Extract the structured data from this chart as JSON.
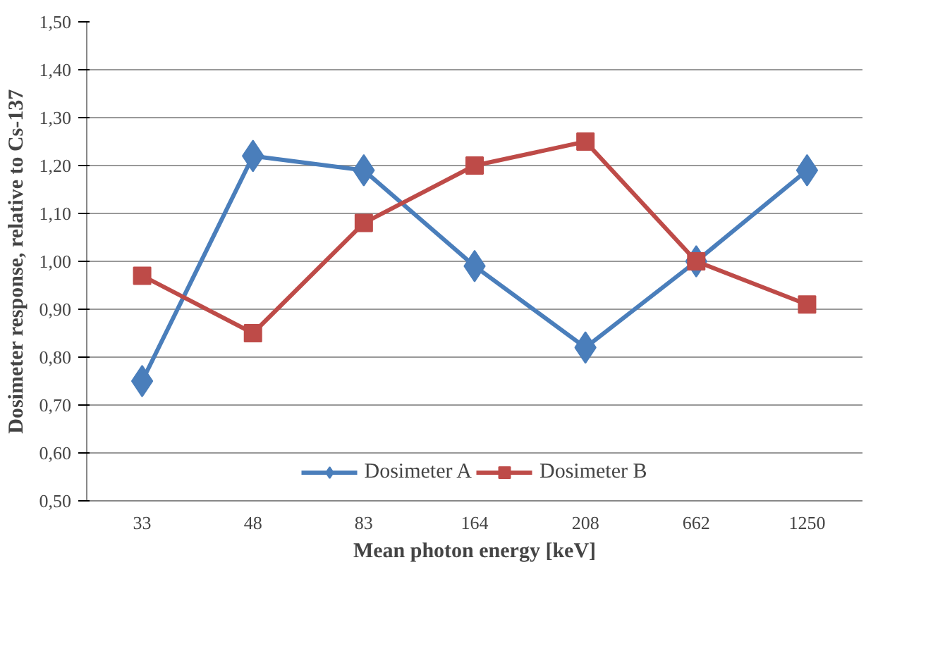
{
  "chart_data": {
    "type": "line",
    "xlabel": "Mean photon energy [keV]",
    "ylabel": "Dosimeter response, relative to Cs-137",
    "categories": [
      "33",
      "48",
      "83",
      "164",
      "208",
      "662",
      "1250"
    ],
    "series": [
      {
        "name": "Dosimeter A",
        "color": "#4a7ebb",
        "marker": "diamond",
        "values": [
          0.75,
          1.22,
          1.19,
          0.99,
          0.82,
          1.0,
          1.19
        ]
      },
      {
        "name": "Dosimeter B",
        "color": "#be4b48",
        "marker": "square",
        "values": [
          0.97,
          0.85,
          1.08,
          1.2,
          1.25,
          1.0,
          0.91
        ]
      }
    ],
    "ylim": [
      0.5,
      1.5
    ],
    "yticks": [
      {
        "value": 0.5,
        "label": "0,50"
      },
      {
        "value": 0.6,
        "label": "0,60"
      },
      {
        "value": 0.7,
        "label": "0,70"
      },
      {
        "value": 0.8,
        "label": "0,80"
      },
      {
        "value": 0.9,
        "label": "0,90"
      },
      {
        "value": 1.0,
        "label": "1,00"
      },
      {
        "value": 1.1,
        "label": "1,10"
      },
      {
        "value": 1.2,
        "label": "1,20"
      },
      {
        "value": 1.3,
        "label": "1,30"
      },
      {
        "value": 1.4,
        "label": "1,40"
      },
      {
        "value": 1.5,
        "label": "1,50"
      }
    ],
    "grid": "y",
    "legend": "bottom",
    "line_style": "solid"
  }
}
